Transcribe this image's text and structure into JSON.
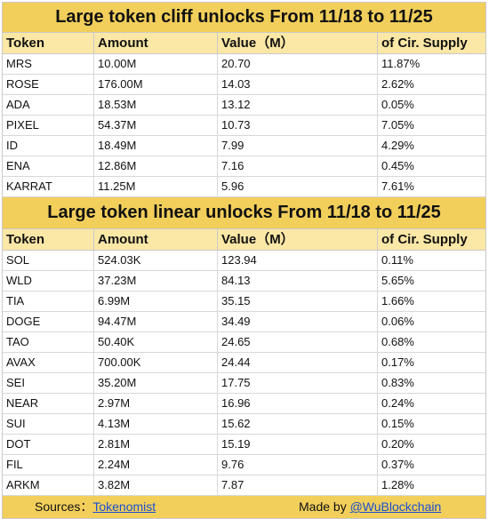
{
  "cliff": {
    "title": "Large token cliff unlocks From 11/18 to 11/25",
    "headers": [
      "Token",
      "Amount",
      "Value（M）",
      "of Cir. Supply"
    ],
    "rows": [
      [
        "MRS",
        "10.00M",
        "20.70",
        "11.87%"
      ],
      [
        "ROSE",
        "176.00M",
        "14.03",
        "2.62%"
      ],
      [
        "ADA",
        "18.53M",
        "13.12",
        "0.05%"
      ],
      [
        "PIXEL",
        "54.37M",
        "10.73",
        "7.05%"
      ],
      [
        "ID",
        "18.49M",
        "7.99",
        "4.29%"
      ],
      [
        "ENA",
        "12.86M",
        "7.16",
        "0.45%"
      ],
      [
        "KARRAT",
        "11.25M",
        "5.96",
        "7.61%"
      ]
    ]
  },
  "linear": {
    "title": "Large token linear unlocks From 11/18 to 11/25",
    "headers": [
      "Token",
      "Amount",
      "Value（M）",
      "of Cir. Supply"
    ],
    "rows": [
      [
        "SOL",
        "524.03K",
        "123.94",
        "0.11%"
      ],
      [
        "WLD",
        "37.23M",
        "84.13",
        "5.65%"
      ],
      [
        "TIA",
        "6.99M",
        "35.15",
        "1.66%"
      ],
      [
        "DOGE",
        "94.47M",
        "34.49",
        "0.06%"
      ],
      [
        "TAO",
        "50.40K",
        "24.65",
        "0.68%"
      ],
      [
        "AVAX",
        "700.00K",
        "24.44",
        "0.17%"
      ],
      [
        "SEI",
        "35.20M",
        "17.75",
        "0.83%"
      ],
      [
        "NEAR",
        "2.97M",
        "16.96",
        "0.24%"
      ],
      [
        "SUI",
        "4.13M",
        "15.62",
        "0.15%"
      ],
      [
        "DOT",
        "2.81M",
        "15.19",
        "0.20%"
      ],
      [
        "FIL",
        "2.24M",
        "9.76",
        "0.37%"
      ],
      [
        "ARKM",
        "3.82M",
        "7.87",
        "1.28%"
      ]
    ]
  },
  "footer": {
    "sources_label": "Sources：",
    "sources_link": "Tokenomist",
    "made_label": "Made by ",
    "made_link": "@WuBlockchain"
  }
}
